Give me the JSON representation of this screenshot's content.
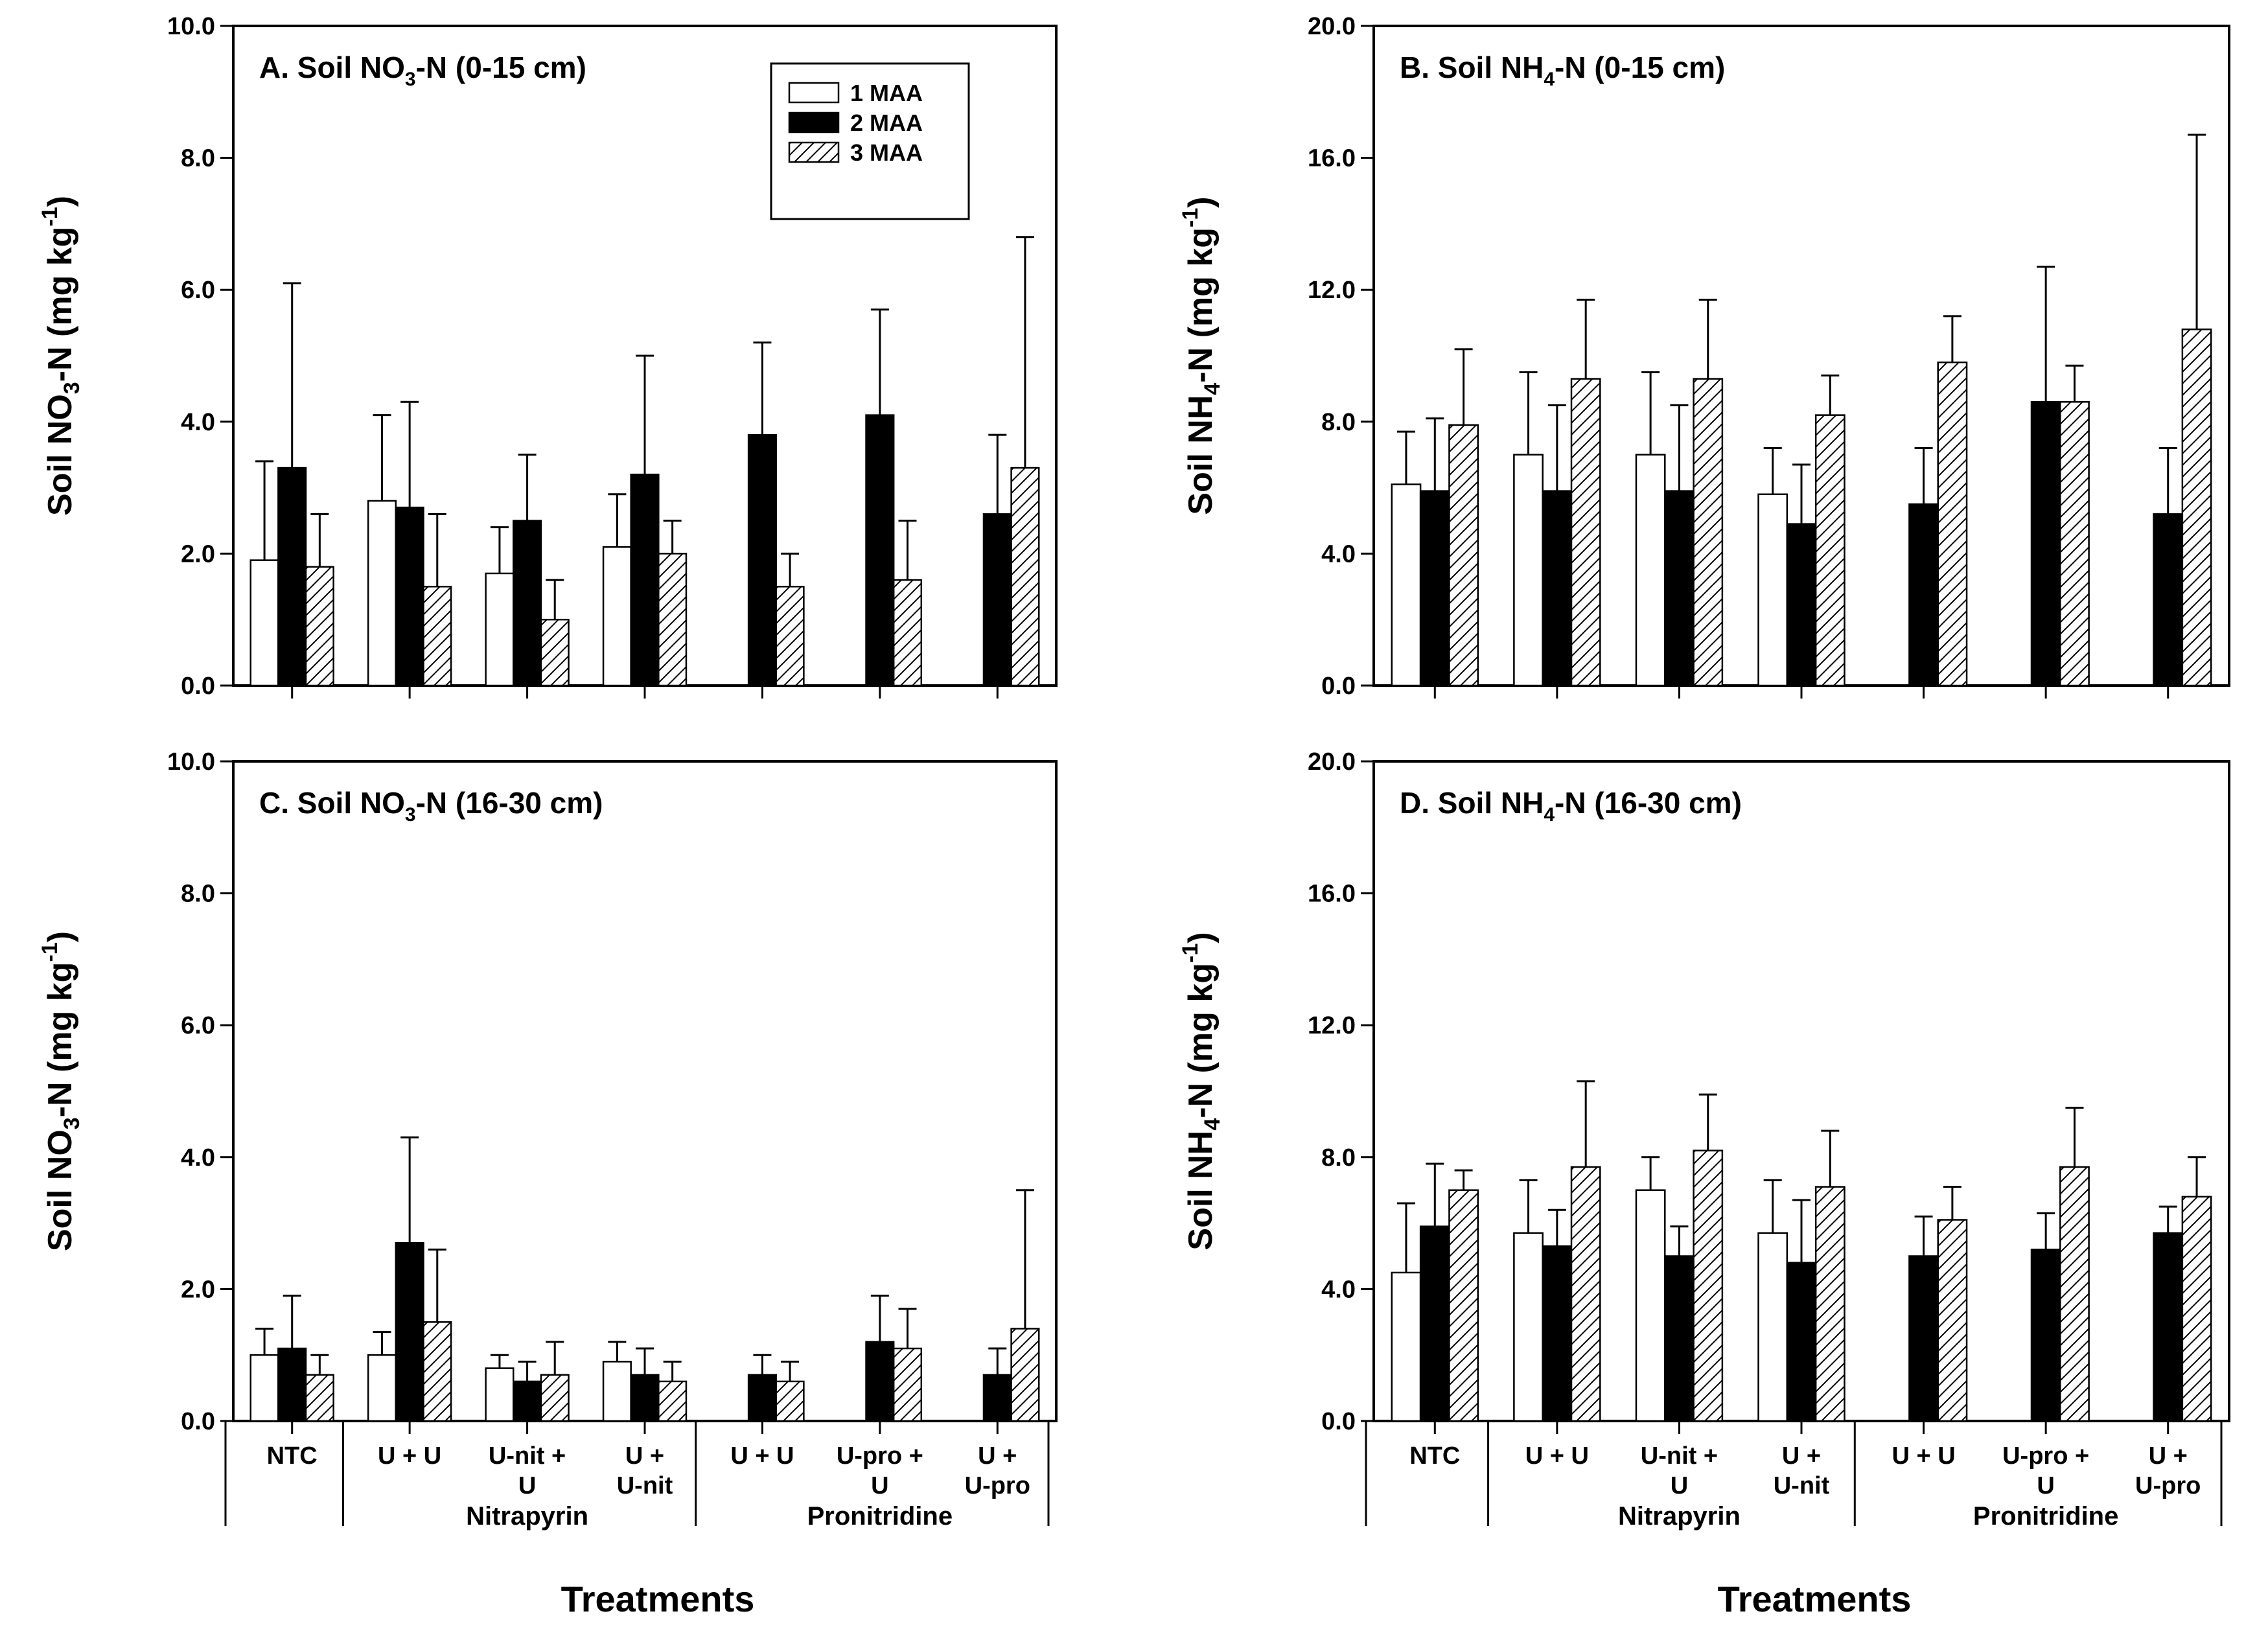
{
  "figure": {
    "xlabel": "Treatments"
  },
  "legend_labels": [
    "1 MAA",
    "2 MAA",
    "3 MAA"
  ],
  "groups": [
    {
      "label": "Nitrapyrin",
      "categories": [
        1,
        2,
        3
      ]
    },
    {
      "label": "Pronitridine",
      "categories": [
        4,
        5,
        6
      ]
    }
  ],
  "chart_data": [
    {
      "type": "bar",
      "title": "A. Soil NO3-N (0-15 cm)",
      "title_parts": {
        "pre": "A. Soil NO",
        "sub": "3",
        "post": "-N (0-15 cm)"
      },
      "ylabel": "Soil NO3-N (mg kg-1)",
      "ylabel_parts": {
        "pre": "Soil NO",
        "sub": "3",
        "mid": "-N (mg kg",
        "sup": "-1",
        "post": ")"
      },
      "xlabel": "",
      "ylim": [
        0,
        10
      ],
      "yticks": [
        0,
        2,
        4,
        6,
        8,
        10
      ],
      "ytick_labels": [
        "0.0",
        "2.0",
        "4.0",
        "6.0",
        "8.0",
        "10.0"
      ],
      "categories": [
        "NTC",
        "U + U",
        "U-nit + U",
        "U + U-nit",
        "U + U",
        "U-pro + U",
        "U + U-pro"
      ],
      "series": [
        {
          "name": "1 MAA",
          "values": [
            1.9,
            2.8,
            1.7,
            2.1,
            null,
            null,
            null
          ],
          "errors": [
            1.5,
            1.3,
            0.7,
            0.8,
            null,
            null,
            null
          ]
        },
        {
          "name": "2 MAA",
          "values": [
            3.3,
            2.7,
            2.5,
            3.2,
            3.8,
            4.1,
            2.6
          ],
          "errors": [
            2.8,
            1.6,
            1.0,
            1.8,
            1.4,
            1.6,
            1.2
          ]
        },
        {
          "name": "3 MAA",
          "values": [
            1.8,
            1.5,
            1.0,
            2.0,
            1.5,
            1.6,
            3.3
          ],
          "errors": [
            0.8,
            1.1,
            0.6,
            0.5,
            0.5,
            0.9,
            3.5
          ]
        }
      ],
      "legend": "top-center"
    },
    {
      "type": "bar",
      "title": "B. Soil NH4-N (0-15 cm)",
      "title_parts": {
        "pre": "B. Soil NH",
        "sub": "4",
        "post": "-N (0-15 cm)"
      },
      "ylabel": "Soil NH4-N (mg kg-1)",
      "ylabel_parts": {
        "pre": "Soil NH",
        "sub": "4",
        "mid": "-N (mg kg",
        "sup": "-1",
        "post": ")"
      },
      "xlabel": "",
      "ylim": [
        0,
        20
      ],
      "yticks": [
        0,
        4,
        8,
        12,
        16,
        20
      ],
      "ytick_labels": [
        "0.0",
        "4.0",
        "8.0",
        "12.0",
        "16.0",
        "20.0"
      ],
      "categories": [
        "NTC",
        "U + U",
        "U-nit + U",
        "U + U-nit",
        "U + U",
        "U-pro + U",
        "U + U-pro"
      ],
      "series": [
        {
          "name": "1 MAA",
          "values": [
            6.1,
            7.0,
            7.0,
            5.8,
            null,
            null,
            null
          ],
          "errors": [
            1.6,
            2.5,
            2.5,
            1.4,
            null,
            null,
            null
          ]
        },
        {
          "name": "2 MAA",
          "values": [
            5.9,
            5.9,
            5.9,
            4.9,
            5.5,
            8.6,
            5.2
          ],
          "errors": [
            2.2,
            2.6,
            2.6,
            1.8,
            1.7,
            4.1,
            2.0
          ]
        },
        {
          "name": "3 MAA",
          "values": [
            7.9,
            9.3,
            9.3,
            8.2,
            9.8,
            8.6,
            10.8
          ],
          "errors": [
            2.3,
            2.4,
            2.4,
            1.2,
            1.4,
            1.1,
            5.9
          ]
        }
      ],
      "legend": "none"
    },
    {
      "type": "bar",
      "title": "C. Soil NO3-N (16-30 cm)",
      "title_parts": {
        "pre": "C. Soil NO",
        "sub": "3",
        "post": "-N (16-30 cm)"
      },
      "ylabel": "Soil NO3-N (mg kg-1)",
      "ylabel_parts": {
        "pre": "Soil NO",
        "sub": "3",
        "mid": "-N (mg kg",
        "sup": "-1",
        "post": ")"
      },
      "xlabel": "Treatments",
      "ylim": [
        0,
        10
      ],
      "yticks": [
        0,
        2,
        4,
        6,
        8,
        10
      ],
      "ytick_labels": [
        "0.0",
        "2.0",
        "4.0",
        "6.0",
        "8.0",
        "10.0"
      ],
      "categories": [
        "NTC",
        "U + U",
        "U-nit + U",
        "U + U-nit",
        "U + U",
        "U-pro + U",
        "U + U-pro"
      ],
      "series": [
        {
          "name": "1 MAA",
          "values": [
            1.0,
            1.0,
            0.8,
            0.9,
            null,
            null,
            null
          ],
          "errors": [
            0.4,
            0.35,
            0.2,
            0.3,
            null,
            null,
            null
          ]
        },
        {
          "name": "2 MAA",
          "values": [
            1.1,
            2.7,
            0.6,
            0.7,
            0.7,
            1.2,
            0.7
          ],
          "errors": [
            0.8,
            1.6,
            0.3,
            0.4,
            0.3,
            0.7,
            0.4
          ]
        },
        {
          "name": "3 MAA",
          "values": [
            0.7,
            1.5,
            0.7,
            0.6,
            0.6,
            1.1,
            1.4
          ],
          "errors": [
            0.3,
            1.1,
            0.5,
            0.3,
            0.3,
            0.6,
            2.1
          ]
        }
      ],
      "legend": "none"
    },
    {
      "type": "bar",
      "title": "D. Soil NH4-N (16-30 cm)",
      "title_parts": {
        "pre": "D. Soil NH",
        "sub": "4",
        "post": "-N (16-30 cm)"
      },
      "ylabel": "Soil NH4-N (mg kg-1)",
      "ylabel_parts": {
        "pre": "Soil NH",
        "sub": "4",
        "mid": "-N (mg kg",
        "sup": "-1",
        "post": ")"
      },
      "xlabel": "Treatments",
      "ylim": [
        0,
        20
      ],
      "yticks": [
        0,
        4,
        8,
        12,
        16,
        20
      ],
      "ytick_labels": [
        "0.0",
        "4.0",
        "8.0",
        "12.0",
        "16.0",
        "20.0"
      ],
      "categories": [
        "NTC",
        "U + U",
        "U-nit + U",
        "U + U-nit",
        "U + U",
        "U-pro + U",
        "U + U-pro"
      ],
      "series": [
        {
          "name": "1 MAA",
          "values": [
            4.5,
            5.7,
            7.0,
            5.7,
            null,
            null,
            null
          ],
          "errors": [
            2.1,
            1.6,
            1.0,
            1.6,
            null,
            null,
            null
          ]
        },
        {
          "name": "2 MAA",
          "values": [
            5.9,
            5.3,
            5.0,
            4.8,
            5.0,
            5.2,
            5.7
          ],
          "errors": [
            1.9,
            1.1,
            0.9,
            1.9,
            1.2,
            1.1,
            0.8
          ]
        },
        {
          "name": "3 MAA",
          "values": [
            7.0,
            7.7,
            8.2,
            7.1,
            6.1,
            7.7,
            6.8
          ],
          "errors": [
            0.6,
            2.6,
            1.7,
            1.7,
            1.0,
            1.8,
            1.2
          ]
        }
      ],
      "legend": "none"
    }
  ]
}
